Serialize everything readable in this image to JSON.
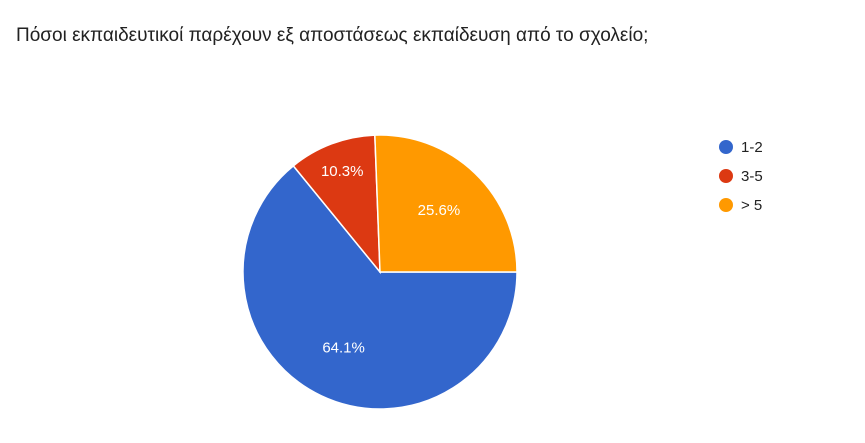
{
  "chart_data": {
    "type": "pie",
    "title": "Πόσοι εκπαιδευτικοί παρέχουν εξ αποστάσεως εκπαίδευση από το σχολείο;",
    "categories": [
      "1-2",
      "3-5",
      "> 5"
    ],
    "values": [
      64.1,
      10.3,
      25.6
    ],
    "value_labels": [
      "64.1%",
      "10.3%",
      "25.6%"
    ],
    "colors": [
      "#3366cc",
      "#dc3912",
      "#ff9900"
    ],
    "legend": "right"
  }
}
